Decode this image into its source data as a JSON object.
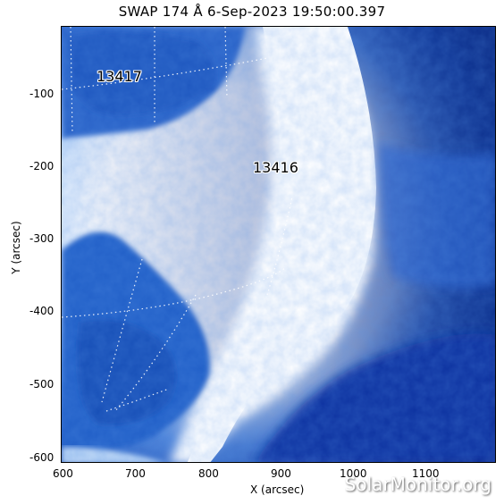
{
  "plot": {
    "title": "SWAP 174 Å  6-Sep-2023 19:50:00.397",
    "xlabel": "X (arcsec)",
    "ylabel": "Y (arcsec)",
    "watermark": "SolarMonitor.org",
    "x_ticks": [
      "600",
      "700",
      "800",
      "900",
      "1000",
      "1100"
    ],
    "y_ticks": [
      "-100",
      "-200",
      "-300",
      "-400",
      "-500",
      "-600"
    ],
    "regions": [
      {
        "id": "13417",
        "label": "13417"
      },
      {
        "id": "13416",
        "label": "13416"
      }
    ],
    "colors": {
      "deep_blue": "#0a2f8f",
      "mid_blue": "#2f6fd6",
      "light_blue": "#9cc4f2",
      "white": "#ffffff"
    }
  }
}
